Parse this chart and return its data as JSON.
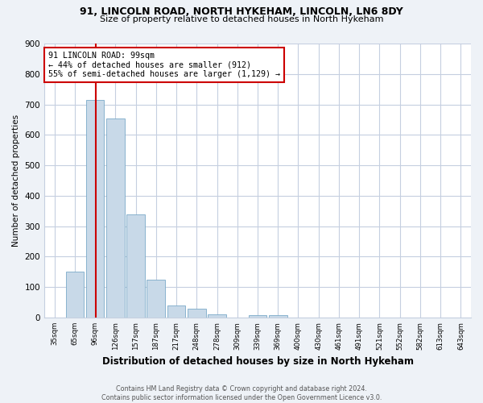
{
  "title": "91, LINCOLN ROAD, NORTH HYKEHAM, LINCOLN, LN6 8DY",
  "subtitle": "Size of property relative to detached houses in North Hykeham",
  "xlabel": "Distribution of detached houses by size in North Hykeham",
  "ylabel": "Number of detached properties",
  "bins": [
    "35sqm",
    "65sqm",
    "96sqm",
    "126sqm",
    "157sqm",
    "187sqm",
    "217sqm",
    "248sqm",
    "278sqm",
    "309sqm",
    "339sqm",
    "369sqm",
    "400sqm",
    "430sqm",
    "461sqm",
    "491sqm",
    "521sqm",
    "552sqm",
    "582sqm",
    "613sqm",
    "643sqm"
  ],
  "values": [
    0,
    150,
    715,
    655,
    340,
    125,
    40,
    28,
    10,
    0,
    8,
    8,
    0,
    0,
    0,
    0,
    0,
    0,
    0,
    0,
    0
  ],
  "bar_color": "#c8d9e8",
  "bar_edge_color": "#7aaac8",
  "bar_width": 0.9,
  "ylim": [
    0,
    900
  ],
  "yticks": [
    0,
    100,
    200,
    300,
    400,
    500,
    600,
    700,
    800,
    900
  ],
  "vline_x": 2.03,
  "vline_color": "#cc0000",
  "annotation_line1": "91 LINCOLN ROAD: 99sqm",
  "annotation_line2": "← 44% of detached houses are smaller (912)",
  "annotation_line3": "55% of semi-detached houses are larger (1,129) →",
  "annotation_box_color": "#cc0000",
  "footnote": "Contains HM Land Registry data © Crown copyright and database right 2024.\nContains public sector information licensed under the Open Government Licence v3.0.",
  "bg_color": "#eef2f7",
  "plot_bg_color": "#ffffff",
  "grid_color": "#c5cfe0"
}
